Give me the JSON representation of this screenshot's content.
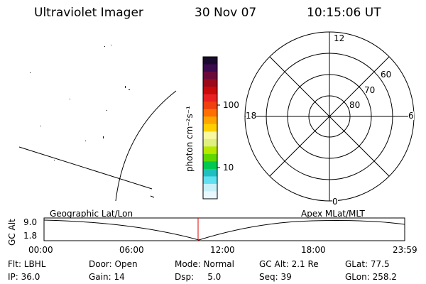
{
  "header": {
    "instrument": "Ultraviolet Imager",
    "date": "30 Nov 07",
    "time": "10:15:06 UT"
  },
  "colorbar": {
    "label": "photon cm⁻²s⁻¹",
    "ticks": [
      "100",
      "10"
    ],
    "colors": [
      "#1a0a2e",
      "#3c0a4e",
      "#6b0a3a",
      "#9a0a1a",
      "#c80a0a",
      "#e82020",
      "#f04010",
      "#ff7000",
      "#ffa500",
      "#ffd000",
      "#f8f8a0",
      "#e0f080",
      "#b8e800",
      "#60d800",
      "#00c850",
      "#20c0c0",
      "#60e0f0",
      "#c8f0f8",
      "#e8f8ff"
    ]
  },
  "polar": {
    "labels": {
      "top": "12",
      "bottom": "0",
      "left": "18",
      "right": "6"
    },
    "lat_labels": [
      "60",
      "70",
      "80"
    ]
  },
  "timeline": {
    "left_label": "Geographic Lat/Lon",
    "right_label": "Apex MLat/MLT",
    "axis_title": "GC Alt",
    "y_ticks": [
      "9.0",
      "1.8"
    ],
    "x_ticks": [
      "00:00",
      "06:00",
      "12:00",
      "18:00",
      "23:59"
    ]
  },
  "info": {
    "flt": "Flt: LBHL",
    "door": "Door: Open",
    "mode": "Mode: Normal",
    "gcalt": "GC Alt: 2.1 Re",
    "glat": "GLat:  77.5",
    "ip": "IP: 36.0",
    "gain": "Gain: 14",
    "dsp": "Dsp:     5.0",
    "seq": "Seq: 39",
    "glon": "GLon: 258.2"
  }
}
